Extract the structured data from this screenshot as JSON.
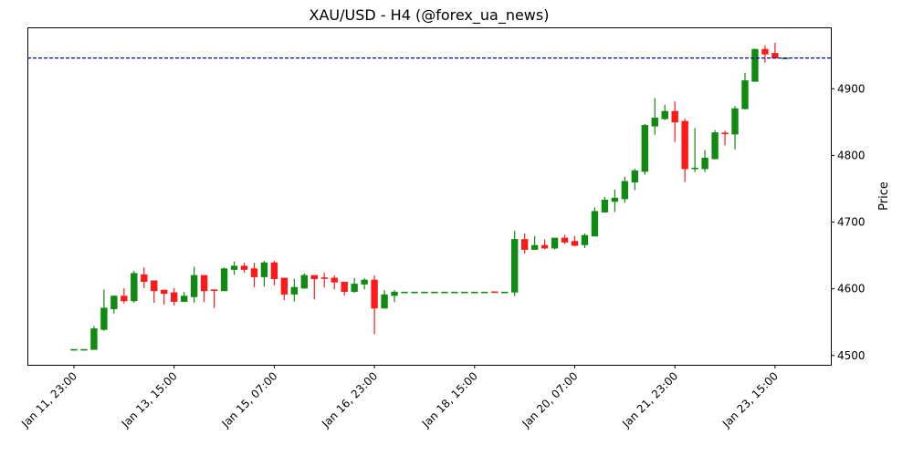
{
  "chart_data": {
    "type": "candlestick",
    "title": "XAU/USD - H4 (@forex_ua_news)",
    "xlabel": "",
    "ylabel": "Price",
    "ylim": [
      4486,
      4992
    ],
    "y_ticks": [
      4500,
      4600,
      4700,
      4800,
      4900
    ],
    "x_ticks": [
      "Jan 11, 23:00",
      "Jan 13, 15:00",
      "Jan 15, 07:00",
      "Jan 16, 23:00",
      "Jan 18, 15:00",
      "Jan 20, 07:00",
      "Jan 21, 23:00",
      "Jan 23, 15:00"
    ],
    "grid": false,
    "y_axis_side": "right",
    "colors": {
      "up": "#108a10",
      "down": "#ff1a1a",
      "hline": "#0000a0"
    },
    "hline": {
      "value": 4946,
      "style": "dashed"
    },
    "columns": [
      "time",
      "open",
      "high",
      "low",
      "close"
    ],
    "candles": [
      [
        "Jan 11, 23:00",
        4509,
        4509,
        4509,
        4509
      ],
      [
        "Jan 12, 03:00",
        4509,
        4509,
        4509,
        4509
      ],
      [
        "Jan 12, 07:00",
        4509,
        4544,
        4509,
        4540
      ],
      [
        "Jan 12, 11:00",
        4539,
        4599,
        4537,
        4571
      ],
      [
        "Jan 12, 15:00",
        4570,
        4590,
        4563,
        4589
      ],
      [
        "Jan 12, 19:00",
        4589,
        4601,
        4578,
        4582
      ],
      [
        "Jan 12, 23:00",
        4582,
        4627,
        4579,
        4623
      ],
      [
        "Jan 13, 03:00",
        4621,
        4632,
        4601,
        4611
      ],
      [
        "Jan 13, 07:00",
        4612,
        4612,
        4579,
        4597
      ],
      [
        "Jan 13, 11:00",
        4598,
        4598,
        4576,
        4593
      ],
      [
        "Jan 13, 15:00",
        4594,
        4601,
        4575,
        4581
      ],
      [
        "Jan 13, 19:00",
        4581,
        4595,
        4580,
        4589
      ],
      [
        "Jan 13, 23:00",
        4588,
        4633,
        4579,
        4620
      ],
      [
        "Jan 14, 03:00",
        4620,
        4620,
        4580,
        4597
      ],
      [
        "Jan 14, 07:00",
        4598.5,
        4598.5,
        4571,
        4598
      ],
      [
        "Jan 14, 11:00",
        4597,
        4632,
        4597,
        4630
      ],
      [
        "Jan 14, 15:00",
        4629,
        4641,
        4621,
        4634
      ],
      [
        "Jan 14, 19:00",
        4634,
        4639,
        4624,
        4629
      ],
      [
        "Jan 14, 23:00",
        4630,
        4639,
        4602,
        4618
      ],
      [
        "Jan 15, 03:00",
        4618,
        4642,
        4603,
        4639
      ],
      [
        "Jan 15, 07:00",
        4639,
        4642,
        4605,
        4615
      ],
      [
        "Jan 15, 11:00",
        4616,
        4616,
        4583,
        4592
      ],
      [
        "Jan 15, 15:00",
        4592,
        4615,
        4581,
        4602
      ],
      [
        "Jan 15, 19:00",
        4601,
        4623,
        4600,
        4620
      ],
      [
        "Jan 15, 23:00",
        4620,
        4620,
        4584,
        4615
      ],
      [
        "Jan 16, 03:00",
        4616.5,
        4624,
        4602,
        4616
      ],
      [
        "Jan 16, 07:00",
        4616,
        4620,
        4599,
        4610
      ],
      [
        "Jan 16, 11:00",
        4610,
        4610,
        4590,
        4596
      ],
      [
        "Jan 16, 15:00",
        4596,
        4616,
        4594,
        4607
      ],
      [
        "Jan 16, 19:00",
        4607,
        4616,
        4599,
        4613
      ],
      [
        "Jan 16, 23:00",
        4613,
        4620,
        4532,
        4571
      ],
      [
        "Jan 17, 03:00",
        4571,
        4598,
        4571,
        4591
      ],
      [
        "Jan 17, 07:00",
        4590,
        4598,
        4580,
        4595
      ],
      [
        "Jan 17, 11:00",
        4595,
        4595,
        4595,
        4595
      ],
      [
        "Jan 17, 15:00",
        4595,
        4595,
        4595,
        4595
      ],
      [
        "Jan 17, 19:00",
        4595,
        4595,
        4595,
        4595
      ],
      [
        "Jan 17, 23:00",
        4595,
        4595,
        4595,
        4595
      ],
      [
        "Jan 18, 03:00",
        4595,
        4595,
        4595,
        4595
      ],
      [
        "Jan 18, 07:00",
        4595,
        4595,
        4595,
        4595
      ],
      [
        "Jan 18, 11:00",
        4595,
        4595,
        4595,
        4595
      ],
      [
        "Jan 18, 15:00",
        4595,
        4595,
        4595,
        4595
      ],
      [
        "Jan 18, 19:00",
        4595,
        4595,
        4595,
        4595
      ],
      [
        "Jan 18, 23:00",
        4595.5,
        4595.5,
        4595,
        4595
      ],
      [
        "Jan 19, 03:00",
        4595,
        4595,
        4595,
        4595
      ],
      [
        "Jan 19, 07:00",
        4595,
        4687,
        4589,
        4674
      ],
      [
        "Jan 19, 11:00",
        4674,
        4683,
        4653,
        4659
      ],
      [
        "Jan 19, 15:00",
        4659,
        4679,
        4659,
        4665
      ],
      [
        "Jan 19, 19:00",
        4665,
        4674,
        4659,
        4661
      ],
      [
        "Jan 19, 23:00",
        4661,
        4676,
        4659,
        4676
      ],
      [
        "Jan 20, 03:00",
        4676,
        4681,
        4667,
        4670
      ],
      [
        "Jan 20, 07:00",
        4671,
        4679,
        4664,
        4665
      ],
      [
        "Jan 20, 11:00",
        4666,
        4683,
        4661,
        4680
      ],
      [
        "Jan 20, 15:00",
        4679,
        4722,
        4679,
        4716
      ],
      [
        "Jan 20, 19:00",
        4715,
        4738,
        4715,
        4733
      ],
      [
        "Jan 20, 23:00",
        4731,
        4749,
        4715,
        4736
      ],
      [
        "Jan 21, 03:00",
        4735,
        4768,
        4729,
        4761
      ],
      [
        "Jan 21, 07:00",
        4760,
        4780,
        4748,
        4777
      ],
      [
        "Jan 21, 11:00",
        4776,
        4847,
        4771,
        4845
      ],
      [
        "Jan 21, 15:00",
        4844,
        4886,
        4831,
        4856
      ],
      [
        "Jan 21, 19:00",
        4855,
        4876,
        4853,
        4866
      ],
      [
        "Jan 21, 23:00",
        4866,
        4881,
        4820,
        4850
      ],
      [
        "Jan 22, 03:00",
        4851,
        4855,
        4760,
        4780
      ],
      [
        "Jan 22, 07:00",
        4781,
        4841,
        4775,
        4781
      ],
      [
        "Jan 22, 11:00",
        4780,
        4808,
        4775,
        4796
      ],
      [
        "Jan 22, 15:00",
        4795,
        4838,
        4794,
        4834
      ],
      [
        "Jan 22, 19:00",
        4833.5,
        4837,
        4815,
        4833
      ],
      [
        "Jan 22, 23:00",
        4832,
        4874,
        4809,
        4870
      ],
      [
        "Jan 23, 03:00",
        4870,
        4924,
        4869,
        4912
      ],
      [
        "Jan 23, 07:00",
        4911,
        4960,
        4911,
        4959
      ],
      [
        "Jan 23, 11:00",
        4959,
        4965,
        4939,
        4952
      ],
      [
        "Jan 23, 15:00",
        4953,
        4969,
        4945,
        4946
      ],
      [
        "Jan 23, 19:00",
        4946,
        4946,
        4946,
        4946
      ]
    ]
  }
}
